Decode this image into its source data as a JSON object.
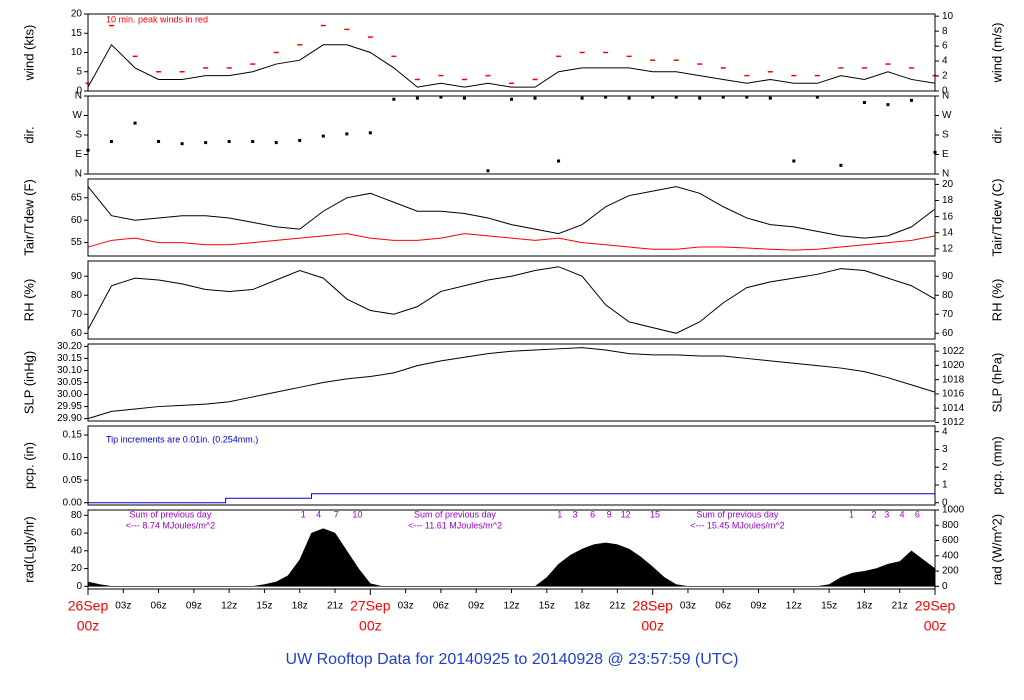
{
  "title": "UW Rooftop Data for 20140925  to  20140928 @ 23:57:59  (UTC)",
  "chart_data": [
    {
      "type": "line",
      "ylabel": "wind (kts)",
      "y2label": "wind (m/s)",
      "note": {
        "text": "10 min. peak winds in red",
        "color": "#ff0000"
      },
      "xlim": [
        0,
        72
      ],
      "ylim": [
        0,
        20
      ],
      "yticks": [
        0,
        5,
        10,
        15,
        20
      ],
      "y2lim": [
        0,
        10.29
      ],
      "y2ticks": [
        0,
        2,
        4,
        6,
        8,
        10
      ],
      "x": [
        0,
        2,
        4,
        6,
        8,
        10,
        12,
        14,
        16,
        18,
        20,
        22,
        24,
        26,
        28,
        30,
        32,
        34,
        36,
        38,
        40,
        42,
        44,
        46,
        48,
        50,
        52,
        54,
        56,
        58,
        60,
        62,
        64,
        66,
        68,
        70,
        72
      ],
      "series": [
        {
          "name": "wind",
          "style": "line",
          "color": "#000000",
          "values": [
            1,
            12,
            6,
            3,
            3,
            4,
            4,
            5,
            7,
            8,
            12,
            12,
            10,
            6,
            1,
            2,
            1,
            2,
            1,
            1,
            5,
            6,
            6,
            6,
            5,
            5,
            4,
            3,
            2,
            3,
            2,
            2,
            4,
            3,
            5,
            3,
            2
          ]
        },
        {
          "name": "10 min. peak",
          "style": "points",
          "color": "#ff0000",
          "values": [
            2,
            17,
            9,
            5,
            5,
            6,
            6,
            7,
            10,
            12,
            17,
            16,
            14,
            9,
            3,
            4,
            3,
            4,
            2,
            3,
            9,
            10,
            10,
            9,
            8,
            8,
            7,
            6,
            4,
            5,
            4,
            4,
            6,
            6,
            7,
            6,
            4
          ]
        }
      ]
    },
    {
      "type": "scatter",
      "ylabel": "dir.",
      "y2label": "dir.",
      "xlim": [
        0,
        72
      ],
      "ylim": [
        0,
        360
      ],
      "y2lim": [
        0,
        360
      ],
      "yticks": [
        {
          "value": 0,
          "label": "N"
        },
        {
          "value": 90,
          "label": "E"
        },
        {
          "value": 180,
          "label": "S"
        },
        {
          "value": 270,
          "label": "W"
        },
        {
          "value": 360,
          "label": "N"
        }
      ],
      "y2ticks": [
        {
          "value": 0,
          "label": "N"
        },
        {
          "value": 90,
          "label": "E"
        },
        {
          "value": 180,
          "label": "S"
        },
        {
          "value": 270,
          "label": "W"
        },
        {
          "value": 360,
          "label": "N"
        }
      ],
      "x": [
        0,
        2,
        4,
        6,
        8,
        10,
        12,
        14,
        16,
        18,
        20,
        22,
        24,
        26,
        28,
        30,
        32,
        34,
        36,
        38,
        40,
        42,
        44,
        46,
        48,
        50,
        52,
        54,
        56,
        58,
        60,
        62,
        64,
        66,
        68,
        70,
        72
      ],
      "series": [
        {
          "name": "direction",
          "color": "#000000",
          "values": [
            110,
            150,
            235,
            150,
            140,
            145,
            150,
            150,
            145,
            155,
            175,
            185,
            190,
            345,
            350,
            355,
            350,
            15,
            345,
            350,
            60,
            350,
            355,
            350,
            355,
            355,
            350,
            355,
            355,
            350,
            60,
            355,
            40,
            330,
            320,
            340,
            100
          ]
        }
      ]
    },
    {
      "type": "line",
      "ylabel": "Tair/Tdew (F)",
      "y2label": "Tair/Tdew (C)",
      "xlim": [
        0,
        72
      ],
      "ylim": [
        52,
        69.2
      ],
      "yticks": [
        55,
        60,
        65
      ],
      "y2lim": [
        11.11,
        20.67
      ],
      "y2ticks": [
        12,
        14,
        16,
        18,
        20
      ],
      "x": [
        0,
        2,
        4,
        6,
        8,
        10,
        12,
        14,
        16,
        18,
        20,
        22,
        24,
        26,
        28,
        30,
        32,
        34,
        36,
        38,
        40,
        42,
        44,
        46,
        48,
        50,
        52,
        54,
        56,
        58,
        60,
        62,
        64,
        66,
        68,
        70,
        72
      ],
      "series": [
        {
          "name": "Tair",
          "style": "line",
          "color": "#000000",
          "values": [
            67.5,
            61,
            60,
            60.5,
            61,
            61,
            60.5,
            59.5,
            58.5,
            58,
            62,
            65,
            66,
            64,
            62,
            62,
            61.5,
            60.5,
            59,
            58,
            57,
            59,
            63,
            65.5,
            66.5,
            67.5,
            66,
            63,
            60.5,
            59,
            58.5,
            57.5,
            56.5,
            56,
            56.5,
            58.5,
            62.5
          ]
        },
        {
          "name": "Tdew",
          "style": "line",
          "color": "#ff0000",
          "values": [
            54,
            55.5,
            56,
            55,
            55,
            54.5,
            54.5,
            55,
            55.5,
            56,
            56.5,
            57,
            56,
            55.5,
            55.5,
            56,
            57,
            56.5,
            56,
            55.5,
            56,
            55,
            54.5,
            54,
            53.5,
            53.5,
            54,
            54,
            53.8,
            53.5,
            53.3,
            53.5,
            54,
            54.5,
            55,
            55.5,
            56.5
          ]
        }
      ]
    },
    {
      "type": "line",
      "ylabel": "RH (%)",
      "y2label": "RH (%)",
      "xlim": [
        0,
        72
      ],
      "ylim": [
        57,
        98
      ],
      "yticks": [
        60,
        70,
        80,
        90
      ],
      "y2lim": [
        57,
        98
      ],
      "y2ticks": [
        60,
        70,
        80,
        90
      ],
      "x": [
        0,
        2,
        4,
        6,
        8,
        10,
        12,
        14,
        16,
        18,
        20,
        22,
        24,
        26,
        28,
        30,
        32,
        34,
        36,
        38,
        40,
        42,
        44,
        46,
        48,
        50,
        52,
        54,
        56,
        58,
        60,
        62,
        64,
        66,
        68,
        70,
        72
      ],
      "series": [
        {
          "name": "RH",
          "style": "line",
          "color": "#000000",
          "values": [
            62,
            85,
            89,
            88,
            86,
            83,
            82,
            83,
            88,
            93,
            89,
            78,
            72,
            70,
            74,
            82,
            85,
            88,
            90,
            93,
            95,
            90,
            75,
            66,
            63,
            60,
            66,
            76,
            84,
            87,
            89,
            91,
            94,
            93,
            89,
            85,
            78
          ]
        }
      ]
    },
    {
      "type": "line",
      "ylabel": "SLP (inHg)",
      "y2label": "SLP (hPa)",
      "xlim": [
        0,
        72
      ],
      "ylim": [
        29.89,
        30.21
      ],
      "yticks": [
        {
          "value": 29.9,
          "label": "29.90"
        },
        {
          "value": 29.95,
          "label": "29.95"
        },
        {
          "value": 30.0,
          "label": "30.00"
        },
        {
          "value": 30.05,
          "label": "30.05"
        },
        {
          "value": 30.1,
          "label": "30.10"
        },
        {
          "value": 30.15,
          "label": "30.15"
        },
        {
          "value": 30.2,
          "label": "30.20"
        }
      ],
      "y2lim": [
        1012.2,
        1023.0
      ],
      "y2ticks": [
        1012,
        1014,
        1016,
        1018,
        1020,
        1022
      ],
      "x": [
        0,
        2,
        4,
        6,
        8,
        10,
        12,
        14,
        16,
        18,
        20,
        22,
        24,
        26,
        28,
        30,
        32,
        34,
        36,
        38,
        40,
        42,
        44,
        46,
        48,
        50,
        52,
        54,
        56,
        58,
        60,
        62,
        64,
        66,
        68,
        70,
        72
      ],
      "series": [
        {
          "name": "SLP",
          "style": "line",
          "color": "#000000",
          "values": [
            29.9,
            29.93,
            29.94,
            29.95,
            29.955,
            29.96,
            29.97,
            29.99,
            30.01,
            30.03,
            30.05,
            30.065,
            30.075,
            30.09,
            30.12,
            30.14,
            30.155,
            30.17,
            30.18,
            30.185,
            30.19,
            30.195,
            30.185,
            30.17,
            30.165,
            30.165,
            30.16,
            30.16,
            30.15,
            30.14,
            30.13,
            30.12,
            30.11,
            30.095,
            30.07,
            30.04,
            30.01
          ]
        }
      ]
    },
    {
      "type": "line",
      "ylabel": "pcp. (in)",
      "y2label": "pcp. (mm)",
      "note": {
        "text": "Tip increments are 0.01in. (0.254mm.)",
        "color": "#0000cc"
      },
      "xlim": [
        0,
        72
      ],
      "ylim": [
        -0.005,
        0.17
      ],
      "yticks": [
        {
          "value": 0,
          "label": "0.00"
        },
        {
          "value": 0.05,
          "label": "0.05"
        },
        {
          "value": 0.1,
          "label": "0.10"
        },
        {
          "value": 0.15,
          "label": "0.15"
        }
      ],
      "y2lim": [
        -0.127,
        4.32
      ],
      "y2ticks": [
        0,
        1,
        2,
        3,
        4
      ],
      "x": [
        0,
        11.7,
        19,
        72
      ],
      "series": [
        {
          "name": "precipitation",
          "style": "step",
          "color": "#0000cc",
          "values": [
            0,
            0.01,
            0.02,
            0.02
          ]
        }
      ]
    },
    {
      "type": "area",
      "ylabel": "rad(Lgly/hr)",
      "y2label": "rad (W/m^2)",
      "xlim": [
        0,
        72
      ],
      "ylim": [
        -3,
        86
      ],
      "yticks": [
        0,
        20,
        40,
        60,
        80
      ],
      "y2lim": [
        -35,
        1000
      ],
      "y2ticks": [
        0,
        200,
        400,
        600,
        800,
        1000
      ],
      "annotation_color": "#9900cc",
      "daily_sums": [
        {
          "x": 7,
          "title": "Sum of previous day",
          "text": "<--- 8.74 MJoules/m^2"
        },
        {
          "x": 31.2,
          "title": "Sum of previous day",
          "text": "<--- 11.61 MJoules/m^2"
        },
        {
          "x": 55.2,
          "title": "Sum of previous day",
          "text": "<--- 15.45 MJoules/m^2"
        }
      ],
      "hour_marks": [
        {
          "x": 18.3,
          "label": "1"
        },
        {
          "x": 19.6,
          "label": "4"
        },
        {
          "x": 21.1,
          "label": "7"
        },
        {
          "x": 22.9,
          "label": "10"
        },
        {
          "x": 40.1,
          "label": "1"
        },
        {
          "x": 41.4,
          "label": "3"
        },
        {
          "x": 42.9,
          "label": "6"
        },
        {
          "x": 44.3,
          "label": "9"
        },
        {
          "x": 45.7,
          "label": "12"
        },
        {
          "x": 48.2,
          "label": "15"
        },
        {
          "x": 64.9,
          "label": "1"
        },
        {
          "x": 66.8,
          "label": "2"
        },
        {
          "x": 67.9,
          "label": "3"
        },
        {
          "x": 69.2,
          "label": "4"
        },
        {
          "x": 70.5,
          "label": "6"
        }
      ],
      "xticks": [
        {
          "value": 3,
          "label": "03z"
        },
        {
          "value": 6,
          "label": "06z"
        },
        {
          "value": 9,
          "label": "09z"
        },
        {
          "value": 12,
          "label": "12z"
        },
        {
          "value": 15,
          "label": "15z"
        },
        {
          "value": 18,
          "label": "18z"
        },
        {
          "value": 21,
          "label": "21z"
        },
        {
          "value": 27,
          "label": "03z"
        },
        {
          "value": 30,
          "label": "06z"
        },
        {
          "value": 33,
          "label": "09z"
        },
        {
          "value": 36,
          "label": "12z"
        },
        {
          "value": 39,
          "label": "15z"
        },
        {
          "value": 42,
          "label": "18z"
        },
        {
          "value": 45,
          "label": "21z"
        },
        {
          "value": 51,
          "label": "03z"
        },
        {
          "value": 54,
          "label": "06z"
        },
        {
          "value": 57,
          "label": "09z"
        },
        {
          "value": 60,
          "label": "12z"
        },
        {
          "value": 63,
          "label": "15z"
        },
        {
          "value": 66,
          "label": "18z"
        },
        {
          "value": 69,
          "label": "21z"
        }
      ],
      "day_ticks": [
        {
          "value": 0,
          "label": "26Sep",
          "hour": "00z"
        },
        {
          "value": 24,
          "label": "27Sep",
          "hour": "00z"
        },
        {
          "value": 48,
          "label": "28Sep",
          "hour": "00z"
        },
        {
          "value": 72,
          "label": "29Sep",
          "hour": "00z"
        }
      ],
      "day_color": "#ff0000",
      "x": [
        0,
        1,
        2,
        3,
        4,
        5,
        6,
        7,
        8,
        9,
        10,
        11,
        12,
        13,
        14,
        15,
        16,
        17,
        18,
        19,
        20,
        21,
        22,
        23,
        24,
        25,
        26,
        27,
        28,
        29,
        30,
        31,
        32,
        33,
        34,
        35,
        36,
        37,
        38,
        39,
        40,
        41,
        42,
        43,
        44,
        45,
        46,
        47,
        48,
        49,
        50,
        51,
        52,
        53,
        54,
        55,
        56,
        57,
        58,
        59,
        60,
        61,
        62,
        63,
        64,
        65,
        66,
        67,
        68,
        69,
        70,
        71,
        72
      ],
      "series": [
        {
          "name": "radiation",
          "color": "#000000",
          "values": [
            5,
            2,
            0,
            0,
            0,
            0,
            0,
            0,
            0,
            0,
            0,
            0,
            0,
            0,
            0,
            2,
            5,
            12,
            30,
            60,
            65,
            60,
            40,
            20,
            3,
            0,
            0,
            0,
            0,
            0,
            0,
            0,
            0,
            0,
            0,
            0,
            0,
            0,
            0,
            10,
            25,
            35,
            42,
            47,
            49,
            47,
            42,
            33,
            22,
            10,
            2,
            0,
            0,
            0,
            0,
            0,
            0,
            0,
            0,
            0,
            0,
            0,
            0,
            2,
            10,
            15,
            17,
            20,
            25,
            28,
            40,
            30,
            20
          ]
        }
      ]
    }
  ]
}
